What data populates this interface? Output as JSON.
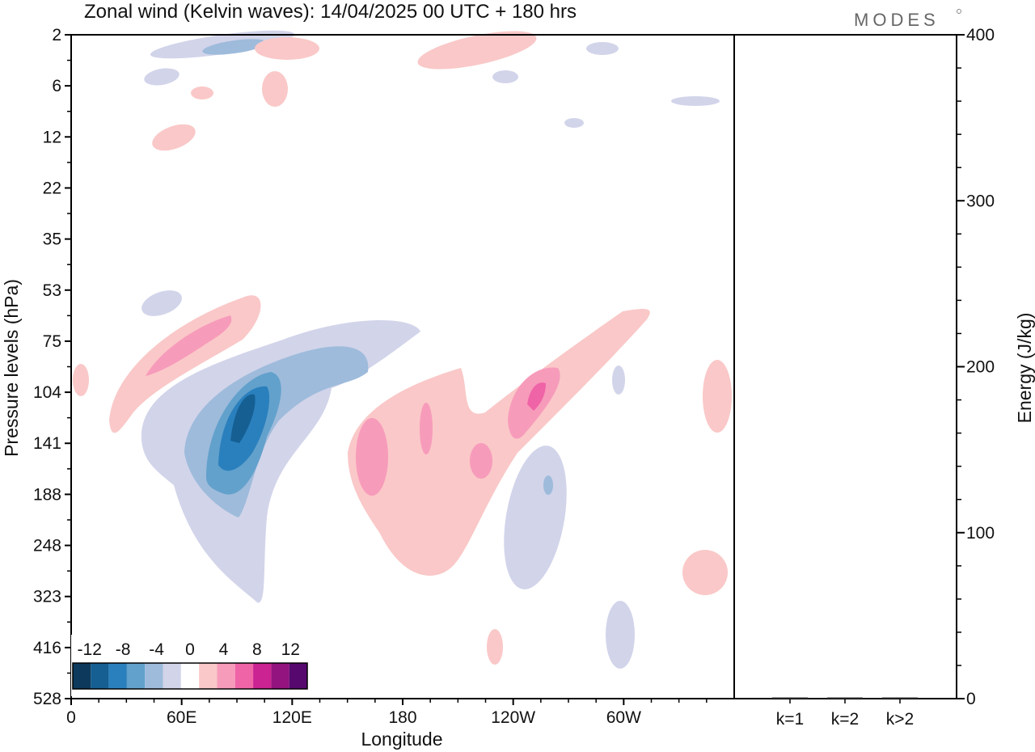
{
  "header": {
    "title": "Zonal wind (Kelvin waves):  14/04/2025  00 UTC  + 180 hrs",
    "logo": "MODES"
  },
  "chart_data": [
    {
      "type": "heatmap",
      "title": "Zonal wind (Kelvin waves):  14/04/2025  00 UTC  + 180 hrs",
      "xlabel": "Longitude",
      "ylabel": "Pressure levels (hPa)",
      "x_ticks": [
        "0",
        "60E",
        "120E",
        "180",
        "120W",
        "60W"
      ],
      "x_tick_degrees": [
        0,
        60,
        120,
        180,
        240,
        300
      ],
      "xlim": [
        0,
        360
      ],
      "y_ticks": [
        "2",
        "6",
        "12",
        "22",
        "35",
        "53",
        "75",
        "104",
        "141",
        "188",
        "248",
        "323",
        "416",
        "528"
      ],
      "y_scale": "model-level (top 2 hPa, bottom 528 hPa)",
      "colorbar": {
        "tick_labels": [
          "-12",
          "-8",
          "-4",
          "0",
          "4",
          "8",
          "12"
        ],
        "tick_values": [
          -12,
          -8,
          -4,
          0,
          4,
          8,
          12
        ],
        "colors": [
          "#0d3a5c",
          "#155f93",
          "#2a80bd",
          "#62a1cc",
          "#9ebbdb",
          "#d2d4ea",
          "#ffffff",
          "#fac8c8",
          "#f79bbb",
          "#ef64a6",
          "#cb2391",
          "#93137f",
          "#56086e"
        ]
      },
      "features": [
        {
          "name": "negative core",
          "lon": 95,
          "level": "104-188",
          "max": -12
        },
        {
          "name": "negative band",
          "lon": "50-150",
          "level": "75-323",
          "value": -4
        },
        {
          "name": "positive upper band",
          "lon": "30-100",
          "level": "53-104",
          "value": 8
        },
        {
          "name": "positive lower band",
          "lon": "150-300",
          "level": "53-323",
          "value": 6
        },
        {
          "name": "positive max",
          "lon": 240,
          "level": "104",
          "max": 10
        }
      ]
    },
    {
      "type": "bar",
      "ylabel": "Energy (J/kg)",
      "categories": [
        "k=1",
        "k=2",
        "k>2"
      ],
      "values": [
        0.3,
        0.5,
        0.3
      ],
      "ylim": [
        0,
        400
      ],
      "y_ticks": [
        "0",
        "100",
        "200",
        "300",
        "400"
      ],
      "y_tick_values": [
        0,
        100,
        200,
        300,
        400
      ]
    }
  ]
}
